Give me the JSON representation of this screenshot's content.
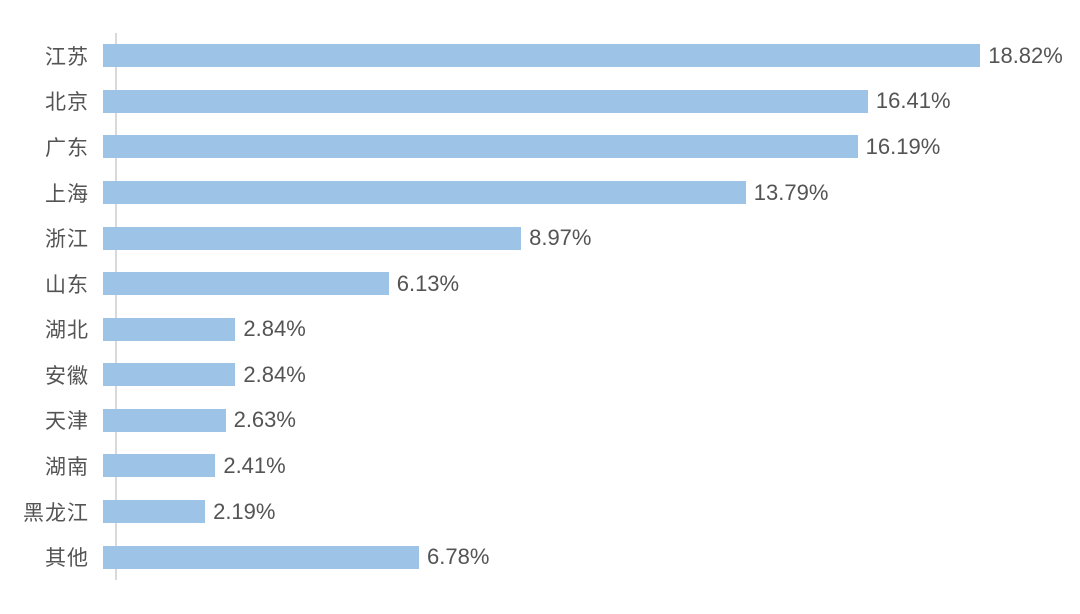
{
  "chart_data": {
    "type": "bar",
    "orientation": "horizontal",
    "title": "",
    "xlabel": "",
    "ylabel": "",
    "categories": [
      "江苏",
      "北京",
      "广东",
      "上海",
      "浙江",
      "山东",
      "湖北",
      "安徽",
      "天津",
      "湖南",
      "黑龙江",
      "其他"
    ],
    "values": [
      18.82,
      16.41,
      16.19,
      13.79,
      8.97,
      6.13,
      2.84,
      2.84,
      2.63,
      2.41,
      2.19,
      6.78
    ],
    "value_labels": [
      "18.82%",
      "16.41%",
      "16.19%",
      "13.79%",
      "8.97%",
      "6.13%",
      "2.84%",
      "2.84%",
      "2.63%",
      "2.41%",
      "2.19%",
      "6.78%"
    ],
    "xlim": [
      0,
      20.66
    ],
    "grid": false,
    "legend": null,
    "colors": {
      "bar": "#9DC3E6",
      "axis": "#D9D9D9",
      "text": "#545454"
    }
  }
}
